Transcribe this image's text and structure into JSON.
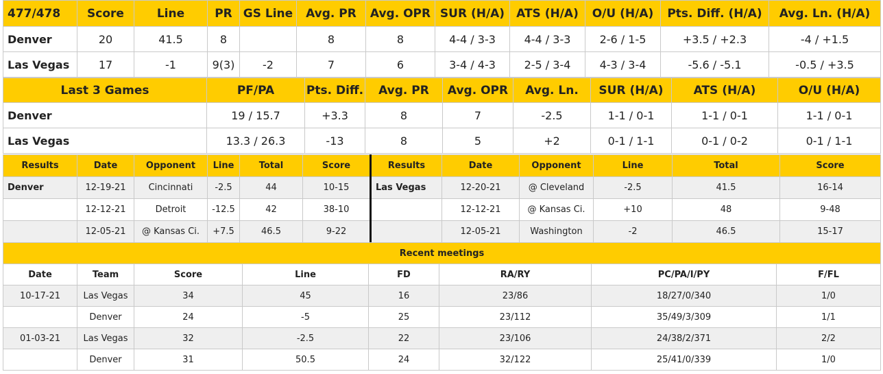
{
  "main": {
    "headers": [
      "477/478",
      "Score",
      "Line",
      "PR",
      "GS Line",
      "Avg. PR",
      "Avg. OPR",
      "SUR (H/A)",
      "ATS (H/A)",
      "O/U (H/A)",
      "Pts. Diff. (H/A)",
      "Avg. Ln. (H/A)"
    ],
    "rows": [
      [
        "Denver",
        "20",
        "41.5",
        "8",
        "",
        "8",
        "8",
        "4-4 / 3-3",
        "4-4 / 3-3",
        "2-6 / 1-5",
        "+3.5 / +2.3",
        "-4 / +1.5"
      ],
      [
        "Las Vegas",
        "17",
        "-1",
        "9(3)",
        "-2",
        "7",
        "6",
        "3-4 / 4-3",
        "2-5 / 3-4",
        "4-3 / 3-4",
        "-5.6 / -5.1",
        "-0.5 / +3.5"
      ]
    ]
  },
  "last3": {
    "headers": [
      "Last 3 Games",
      "PF/PA",
      "Pts. Diff.",
      "Avg. PR",
      "Avg. OPR",
      "Avg. Ln.",
      "SUR (H/A)",
      "ATS (H/A)",
      "O/U (H/A)"
    ],
    "rows": [
      [
        "Denver",
        "19 / 15.7",
        "+3.3",
        "8",
        "7",
        "-2.5",
        "1-1 / 0-1",
        "1-1 / 0-1",
        "1-1 / 0-1"
      ],
      [
        "Las Vegas",
        "13.3 / 26.3",
        "-13",
        "8",
        "5",
        "+2",
        "0-1 / 1-1",
        "0-1 / 0-2",
        "0-1 / 1-1"
      ]
    ]
  },
  "results": {
    "headers": [
      "Results",
      "Date",
      "Opponent",
      "Line",
      "Total",
      "Score",
      "Results",
      "Date",
      "Opponent",
      "Line",
      "Total",
      "Score"
    ],
    "rows": [
      [
        "Denver",
        "12-19-21",
        "Cincinnati",
        "-2.5",
        "44",
        "10-15",
        "Las Vegas",
        "12-20-21",
        "@ Cleveland",
        "-2.5",
        "41.5",
        "16-14"
      ],
      [
        "",
        "12-12-21",
        "Detroit",
        "-12.5",
        "42",
        "38-10",
        "",
        "12-12-21",
        "@ Kansas Ci.",
        "+10",
        "48",
        "9-48"
      ],
      [
        "",
        "12-05-21",
        "@ Kansas Ci.",
        "+7.5",
        "46.5",
        "9-22",
        "",
        "12-05-21",
        "Washington",
        "-2",
        "46.5",
        "15-17"
      ]
    ]
  },
  "meetings": {
    "title": "Recent meetings",
    "headers": [
      "Date",
      "Team",
      "Score",
      "Line",
      "FD",
      "RA/RY",
      "PC/PA/I/PY",
      "F/FL"
    ],
    "rows": [
      [
        "10-17-21",
        "Las Vegas",
        "34",
        "45",
        "16",
        "23/86",
        "18/27/0/340",
        "1/0"
      ],
      [
        "",
        "Denver",
        "24",
        "-5",
        "25",
        "23/112",
        "35/49/3/309",
        "1/1"
      ],
      [
        "01-03-21",
        "Las Vegas",
        "32",
        "-2.5",
        "22",
        "23/106",
        "24/38/2/371",
        "2/2"
      ],
      [
        "",
        "Denver",
        "31",
        "50.5",
        "24",
        "32/122",
        "25/41/0/339",
        "1/0"
      ]
    ]
  },
  "colors": {
    "header": "#ffcc00",
    "alt_row": "#efefef",
    "border": "#c9c9c9"
  }
}
